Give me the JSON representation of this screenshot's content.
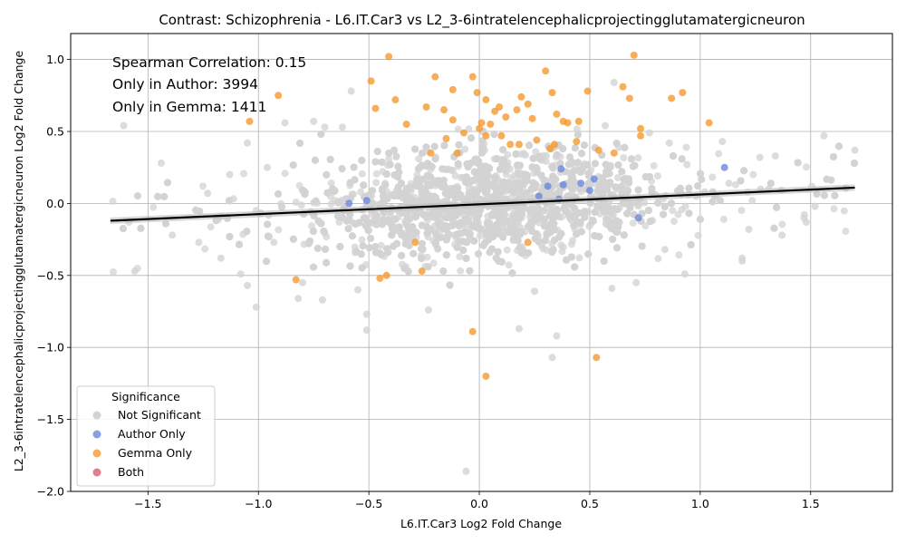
{
  "chart_data": {
    "type": "scatter",
    "title": "Contrast: Schizophrenia - L6.IT.Car3 vs L2_3-6intratelencephalicprojectingglutamatergicneuron",
    "xlabel": "L6.IT.Car3 Log2 Fold Change",
    "ylabel": "L2_3-6intratelencephalicprojectingglutamatergicneuron Log2 Fold Change",
    "xlim": [
      -1.85,
      1.87
    ],
    "ylim": [
      -2.0,
      1.18
    ],
    "x_ticks": [
      -1.5,
      -1.0,
      -0.5,
      0.0,
      0.5,
      1.0,
      1.5
    ],
    "x_tick_labels": [
      "−1.5",
      "−1.0",
      "−0.5",
      "0.0",
      "0.5",
      "1.0",
      "1.5"
    ],
    "y_ticks": [
      -2.0,
      -1.5,
      -1.0,
      -0.5,
      0.0,
      0.5,
      1.0
    ],
    "y_tick_labels": [
      "−2.0",
      "−1.5",
      "−1.0",
      "−0.5",
      "0.0",
      "0.5",
      "1.0"
    ],
    "grid": true,
    "annotations": [
      "Spearman Correlation: 0.15",
      "Only in Author: 3994",
      "Only in Gemma: 1411"
    ],
    "regression_line": {
      "x": [
        -1.67,
        1.7
      ],
      "y": [
        -0.12,
        0.11
      ],
      "color": "#000000"
    },
    "legend": {
      "title": "Significance",
      "placement": "lower-left",
      "entries": [
        {
          "name": "Not Significant",
          "color": "#d3d3d3"
        },
        {
          "name": "Author Only",
          "color": "#6b87dc"
        },
        {
          "name": "Gemma Only",
          "color": "#f59a2e"
        },
        {
          "name": "Both",
          "color": "#d95f76"
        }
      ]
    },
    "series": [
      {
        "name": "Gemma Only",
        "color": "#f59a2e",
        "points": [
          [
            -1.04,
            0.57
          ],
          [
            -0.91,
            0.75
          ],
          [
            -0.49,
            0.85
          ],
          [
            -0.47,
            0.66
          ],
          [
            -0.41,
            1.02
          ],
          [
            -0.38,
            0.72
          ],
          [
            -0.33,
            0.55
          ],
          [
            -0.24,
            0.67
          ],
          [
            -0.2,
            0.88
          ],
          [
            -0.16,
            0.65
          ],
          [
            -0.12,
            0.79
          ],
          [
            -0.12,
            0.58
          ],
          [
            -0.07,
            0.49
          ],
          [
            -0.03,
            0.88
          ],
          [
            -0.01,
            0.77
          ],
          [
            0.01,
            0.56
          ],
          [
            0.03,
            0.72
          ],
          [
            0.05,
            0.55
          ],
          [
            0.07,
            0.64
          ],
          [
            0.09,
            0.67
          ],
          [
            0.1,
            0.47
          ],
          [
            0.12,
            0.6
          ],
          [
            0.14,
            0.41
          ],
          [
            0.17,
            0.65
          ],
          [
            0.19,
            0.74
          ],
          [
            0.22,
            0.69
          ],
          [
            0.24,
            0.59
          ],
          [
            0.26,
            0.44
          ],
          [
            0.3,
            0.92
          ],
          [
            0.33,
            0.77
          ],
          [
            0.35,
            0.62
          ],
          [
            0.38,
            0.57
          ],
          [
            0.4,
            0.56
          ],
          [
            0.45,
            0.57
          ],
          [
            0.49,
            0.78
          ],
          [
            0.54,
            0.37
          ],
          [
            0.65,
            0.81
          ],
          [
            0.68,
            0.73
          ],
          [
            0.7,
            1.03
          ],
          [
            0.73,
            0.52
          ],
          [
            0.73,
            0.47
          ],
          [
            0.87,
            0.73
          ],
          [
            0.92,
            0.77
          ],
          [
            1.04,
            0.56
          ],
          [
            -0.83,
            -0.53
          ],
          [
            -0.45,
            -0.52
          ],
          [
            -0.42,
            -0.5
          ],
          [
            -0.26,
            -0.47
          ],
          [
            -0.03,
            -0.89
          ],
          [
            0.03,
            -1.2
          ],
          [
            0.53,
            -1.07
          ],
          [
            -0.29,
            -0.27
          ],
          [
            0.22,
            -0.27
          ],
          [
            -0.22,
            0.35
          ],
          [
            -0.1,
            0.35
          ],
          [
            0.03,
            0.47
          ],
          [
            0.18,
            0.41
          ],
          [
            0.32,
            0.38
          ],
          [
            0.34,
            0.41
          ],
          [
            0.44,
            0.43
          ],
          [
            0.61,
            0.35
          ],
          [
            0.0,
            0.52
          ],
          [
            -0.15,
            0.45
          ]
        ]
      },
      {
        "name": "Author Only",
        "color": "#6b87dc",
        "points": [
          [
            -0.59,
            0.0
          ],
          [
            -0.51,
            0.02
          ],
          [
            0.37,
            0.24
          ],
          [
            0.38,
            0.13
          ],
          [
            0.46,
            0.14
          ],
          [
            0.5,
            0.09
          ],
          [
            0.52,
            0.17
          ],
          [
            0.72,
            -0.1
          ],
          [
            1.11,
            0.25
          ],
          [
            0.31,
            0.12
          ],
          [
            0.27,
            0.05
          ],
          [
            0.36,
            0.03
          ]
        ]
      },
      {
        "name": "Both",
        "color": "#d95f76",
        "points": []
      }
    ],
    "background_series": {
      "name": "Not Significant",
      "color": "#d3d3d3",
      "count": 3600,
      "core_x_range": [
        -0.6,
        0.75
      ],
      "core_y_range": [
        -0.45,
        0.45
      ],
      "scattered_points": [
        [
          -1.61,
          0.54
        ],
        [
          -1.56,
          -0.47
        ],
        [
          -1.44,
          0.28
        ],
        [
          -1.39,
          -0.22
        ],
        [
          -1.27,
          -0.27
        ],
        [
          -1.17,
          -0.38
        ],
        [
          -1.08,
          -0.49
        ],
        [
          -1.05,
          -0.57
        ],
        [
          -1.01,
          -0.72
        ],
        [
          -0.82,
          -0.66
        ],
        [
          -0.71,
          -0.67
        ],
        [
          -0.58,
          0.78
        ],
        [
          -0.51,
          -0.77
        ],
        [
          -0.51,
          -0.88
        ],
        [
          -0.23,
          -0.74
        ],
        [
          -0.06,
          -1.86
        ],
        [
          0.18,
          -0.87
        ],
        [
          0.35,
          -0.92
        ],
        [
          0.33,
          -1.07
        ],
        [
          0.61,
          0.84
        ],
        [
          0.77,
          0.49
        ],
        [
          1.1,
          0.43
        ],
        [
          1.27,
          0.32
        ],
        [
          1.34,
          0.33
        ],
        [
          1.56,
          0.47
        ],
        [
          1.7,
          0.37
        ],
        [
          1.52,
          -0.02
        ],
        [
          1.48,
          -0.13
        ],
        [
          1.37,
          -0.22
        ],
        [
          1.19,
          -0.4
        ],
        [
          0.93,
          -0.49
        ],
        [
          0.71,
          -0.55
        ],
        [
          1.19,
          -0.38
        ],
        [
          1.22,
          -0.18
        ],
        [
          -1.23,
          0.07
        ],
        [
          -1.13,
          0.2
        ],
        [
          -0.96,
          0.25
        ],
        [
          -0.88,
          0.56
        ],
        [
          -0.75,
          0.57
        ],
        [
          -0.7,
          0.53
        ],
        [
          0.94,
          0.27
        ],
        [
          1.02,
          0.08
        ],
        [
          1.13,
          0.14
        ],
        [
          1.31,
          0.1
        ],
        [
          1.47,
          -0.1
        ],
        [
          -1.05,
          0.42
        ],
        [
          -0.62,
          0.53
        ],
        [
          0.57,
          0.54
        ],
        [
          0.86,
          0.42
        ],
        [
          -0.93,
          -0.27
        ],
        [
          0.6,
          -0.59
        ],
        [
          0.84,
          -0.32
        ],
        [
          -0.8,
          -0.55
        ],
        [
          -0.55,
          -0.6
        ],
        [
          0.25,
          -0.61
        ]
      ]
    }
  }
}
